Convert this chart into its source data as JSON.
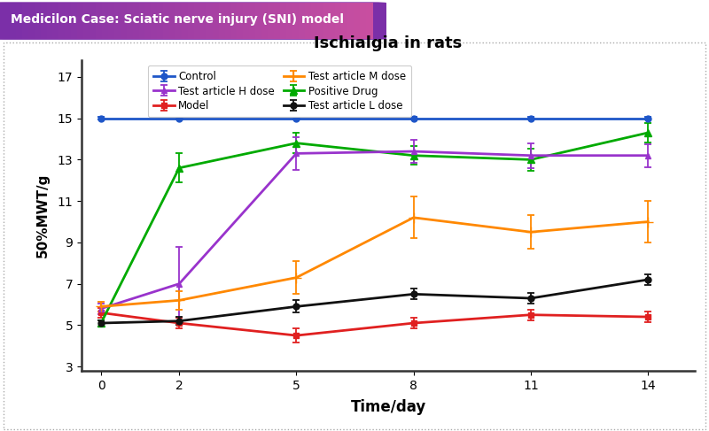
{
  "title": "Ischialgia in rats",
  "xlabel": "Time/day",
  "ylabel": "50%MWT/g",
  "header_text": "Medicilon Case: Sciatic nerve injury (SNI) model",
  "header_bg_left": "#7b2fa8",
  "header_bg_right": "#c94fa0",
  "header_text_color": "#ffffff",
  "fig_bg": "#ffffff",
  "plot_bg": "#ffffff",
  "border_color": "#cccccc",
  "x": [
    0,
    2,
    5,
    8,
    11,
    14
  ],
  "yticks": [
    3,
    5,
    7,
    9,
    11,
    13,
    15,
    17
  ],
  "ylim": [
    2.8,
    17.8
  ],
  "xlim": [
    -0.5,
    15.2
  ],
  "series": {
    "Control": {
      "y": [
        15.0,
        15.0,
        15.0,
        15.0,
        15.0,
        15.0
      ],
      "yerr": [
        0.05,
        0.05,
        0.05,
        0.05,
        0.05,
        0.05
      ],
      "color": "#1e56c8",
      "marker": "o",
      "markersize": 5,
      "linewidth": 2.0
    },
    "Model": {
      "y": [
        5.6,
        5.1,
        4.5,
        5.1,
        5.5,
        5.4
      ],
      "yerr": [
        0.25,
        0.25,
        0.35,
        0.25,
        0.25,
        0.25
      ],
      "color": "#e02020",
      "marker": "s",
      "markersize": 5,
      "linewidth": 2.0
    },
    "Positive Drug": {
      "y": [
        5.1,
        12.6,
        13.8,
        13.2,
        13.0,
        14.3
      ],
      "yerr": [
        0.15,
        0.7,
        0.5,
        0.45,
        0.55,
        0.45
      ],
      "color": "#00aa00",
      "marker": "^",
      "markersize": 6,
      "linewidth": 2.0
    },
    "Test article H dose": {
      "y": [
        5.8,
        7.0,
        13.3,
        13.4,
        13.2,
        13.2
      ],
      "yerr": [
        0.25,
        1.8,
        0.8,
        0.55,
        0.6,
        0.55
      ],
      "color": "#9933cc",
      "marker": "^",
      "markersize": 5,
      "linewidth": 2.0
    },
    "Test article M dose": {
      "y": [
        5.9,
        6.2,
        7.3,
        10.2,
        9.5,
        10.0
      ],
      "yerr": [
        0.25,
        0.45,
        0.8,
        1.0,
        0.8,
        1.0
      ],
      "color": "#ff8800",
      "marker": "+",
      "markersize": 8,
      "linewidth": 2.0
    },
    "Test article L dose": {
      "y": [
        5.1,
        5.2,
        5.9,
        6.5,
        6.3,
        7.2
      ],
      "yerr": [
        0.15,
        0.2,
        0.3,
        0.25,
        0.25,
        0.25
      ],
      "color": "#111111",
      "marker": "o",
      "markersize": 5,
      "linewidth": 2.0
    }
  },
  "legend_order": [
    "Control",
    "Test article H dose",
    "Model",
    "Test article M dose",
    "Positive Drug",
    "Test article L dose"
  ]
}
